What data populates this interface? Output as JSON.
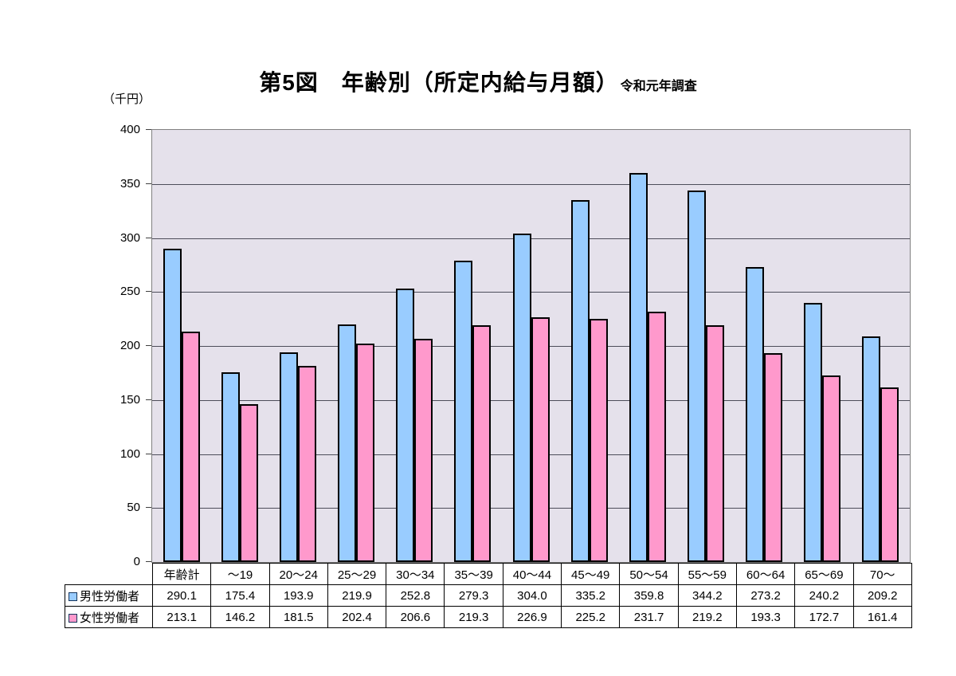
{
  "title": {
    "main": "第5図　年齢別（所定内給与月額）",
    "suffix": "令和元年調査"
  },
  "unit_label": "（千円）",
  "chart_data": {
    "type": "bar",
    "title": "第5図　年齢別（所定内給与月額）令和元年調査",
    "ylabel": "（千円）",
    "xlabel": "",
    "ylim": [
      0,
      400
    ],
    "ytick_step": 50,
    "yticks": [
      0,
      50,
      100,
      150,
      200,
      250,
      300,
      350,
      400
    ],
    "grid": true,
    "legend_position": "table-left",
    "categories": [
      "年齢計",
      "～19",
      "20～24",
      "25～29",
      "30～34",
      "35～39",
      "40～44",
      "45～49",
      "50～54",
      "55～59",
      "60～64",
      "65～69",
      "70～"
    ],
    "series": [
      {
        "name": "男性労働者",
        "color": "#99CCFF",
        "values": [
          290.1,
          175.4,
          193.9,
          219.9,
          252.8,
          279.3,
          304.0,
          335.2,
          359.8,
          344.2,
          273.2,
          240.2,
          209.2
        ]
      },
      {
        "name": "女性労働者",
        "color": "#FF99CC",
        "values": [
          213.1,
          146.2,
          181.5,
          202.4,
          206.6,
          219.3,
          226.9,
          225.2,
          231.7,
          219.2,
          193.3,
          172.7,
          161.4
        ]
      }
    ],
    "colors": {
      "plot_bg": "#E5E1EB",
      "gridline": "#4D4D5A",
      "plot_border": "#808080",
      "bar_border": "#000000",
      "table_border": "#000000"
    }
  }
}
